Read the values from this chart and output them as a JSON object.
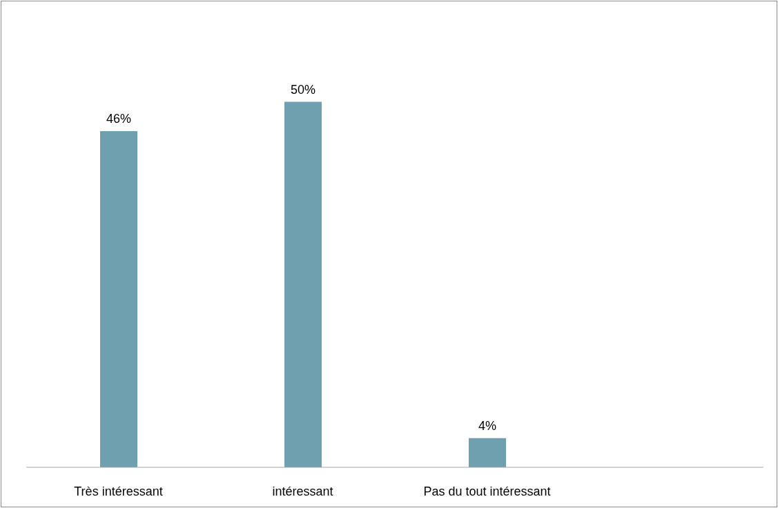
{
  "chart_data": {
    "type": "bar",
    "categories": [
      "Très intéressant",
      "intéressant",
      "Pas du tout intéressant",
      null
    ],
    "values": [
      46,
      50,
      4,
      null
    ],
    "value_labels": [
      "46%",
      "50%",
      "4%",
      null
    ],
    "color": "#6fa0b0",
    "grid": false,
    "legend": false
  }
}
